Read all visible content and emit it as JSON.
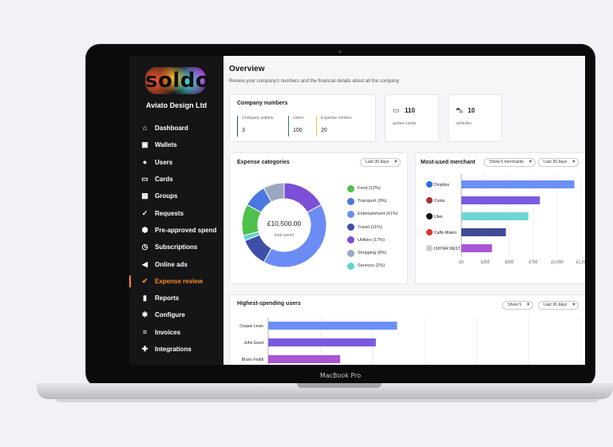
{
  "device": {
    "brand": "MacBook Pro"
  },
  "sidebar": {
    "logo": "soldo",
    "company": "Aviato Design Ltd",
    "items": [
      {
        "label": "Dashboard",
        "icon": "home-icon"
      },
      {
        "label": "Wallets",
        "icon": "wallet-icon"
      },
      {
        "label": "Users",
        "icon": "user-icon"
      },
      {
        "label": "Cards",
        "icon": "cards-icon"
      },
      {
        "label": "Groups",
        "icon": "groups-icon"
      },
      {
        "label": "Requests",
        "icon": "requests-icon"
      },
      {
        "label": "Pre-approved spend",
        "icon": "badge-icon"
      },
      {
        "label": "Subscriptions",
        "icon": "clock-icon"
      },
      {
        "label": "Online ads",
        "icon": "megaphone-icon"
      },
      {
        "label": "Expense review",
        "icon": "check-icon",
        "active": true
      },
      {
        "label": "Reports",
        "icon": "bar-chart-icon"
      },
      {
        "label": "Configure",
        "icon": "gear-icon"
      },
      {
        "label": "Invoices",
        "icon": "invoice-icon"
      },
      {
        "label": "Integrations",
        "icon": "puzzle-icon"
      }
    ]
  },
  "header": {
    "title": "Overview",
    "subtitle": "Review your company's numbers and the financial details about all the company"
  },
  "company_numbers": {
    "title": "Company numbers",
    "kpis": [
      {
        "label": "Company wallets",
        "value": "3",
        "color": "#1f4e79"
      },
      {
        "label": "Users",
        "value": "100",
        "color": "#1f7a6b"
      },
      {
        "label": "Expense centres",
        "value": "20",
        "color": "#f2c230"
      }
    ]
  },
  "active_cards": {
    "value": "110",
    "label": "active cards"
  },
  "vehicles": {
    "value": "10",
    "label": "vehicles"
  },
  "expense_categories": {
    "title": "Expense categories",
    "period": "Last 30 days",
    "center_value": "£10,500.00",
    "center_label": "total spend"
  },
  "merchants": {
    "title": "Most-used merchant",
    "show_select": "Show 5 merchants",
    "period": "Last 30 days"
  },
  "users": {
    "title": "Highest-spending users",
    "show_select": "Show 5",
    "period": "Last 30 days"
  },
  "colors": {
    "accent": "#ff8a1e",
    "sidebar": "#141517"
  },
  "chart_data": [
    {
      "type": "pie",
      "name": "Expense categories",
      "categories": [
        "Food (12%)",
        "Transport (9%)",
        "Entertainment (41%)",
        "Travel (11%)",
        "Utilities (17%)",
        "Shopping (8%)",
        "Services (2%)"
      ],
      "values": [
        12,
        9,
        41,
        11,
        17,
        8,
        2
      ],
      "colors": [
        "#4cc24c",
        "#4a78e0",
        "#6c8cf5",
        "#3f4ea8",
        "#7b4fd6",
        "#9aa7bf",
        "#5fd3d3"
      ],
      "donut_order": [
        4,
        2,
        3,
        6,
        0,
        1,
        5
      ]
    },
    {
      "type": "bar",
      "orientation": "horizontal",
      "categories": [
        "Dropbox",
        "Costa",
        "Uber",
        "Caffè Milano",
        "ISHTAR REST..."
      ],
      "values": [
        1180,
        820,
        700,
        465,
        320
      ],
      "colors": [
        "#6b8ff5",
        "#7a5ae0",
        "#6fd6d6",
        "#3f4a96",
        "#a855d6"
      ],
      "icon_colors": [
        "#2c6be0",
        "#a8323a",
        "#111111",
        "#d8392b",
        "#ccc"
      ],
      "x_ticks": [
        "£0",
        "£250",
        "£500",
        "£750",
        "£1,000",
        "£1,25"
      ],
      "xlim": [
        0,
        1250
      ]
    },
    {
      "type": "bar",
      "orientation": "horizontal",
      "categories": [
        "Cooper Levin",
        "John Good",
        "Bruno Foddi"
      ],
      "values": [
        1030,
        860,
        575
      ],
      "colors": [
        "#6b8ff5",
        "#7a5ae0",
        "#a855d6"
      ],
      "xlim": [
        0,
        2500
      ]
    }
  ]
}
